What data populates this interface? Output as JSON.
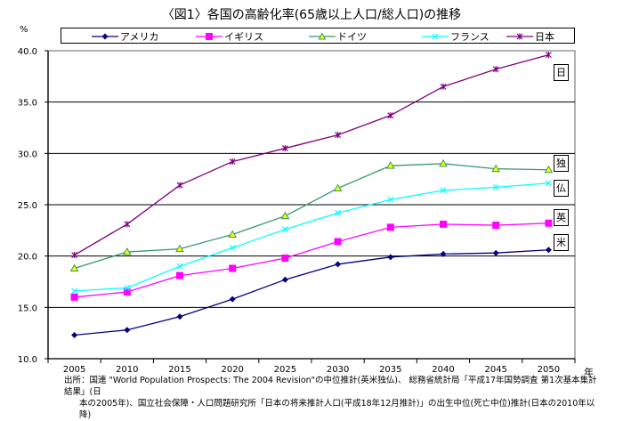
{
  "chart_data": {
    "type": "line",
    "title": "〈図1〉各国の高齢化率(65歳以上人口/総人口)の推移",
    "ylabel": "%",
    "xlabel": "年",
    "ylim": [
      10.0,
      40.0
    ],
    "yticks": [
      "10.0",
      "15.0",
      "20.0",
      "25.0",
      "30.0",
      "35.0",
      "40.0"
    ],
    "ytick_values": [
      10,
      15,
      20,
      25,
      30,
      35,
      40
    ],
    "x": [
      2005,
      2010,
      2015,
      2020,
      2025,
      2030,
      2035,
      2040,
      2045,
      2050
    ],
    "xtick_labels": [
      "2005",
      "2010",
      "2015",
      "2020",
      "2025",
      "2030",
      "2035",
      "2040",
      "2045",
      "2050"
    ],
    "grid": true,
    "legend_position": "top",
    "series": [
      {
        "name": "アメリカ",
        "color": "#000080",
        "marker": "diamond",
        "end_label": "米",
        "values": [
          12.3,
          12.8,
          14.1,
          15.8,
          17.7,
          19.2,
          19.9,
          20.2,
          20.3,
          20.6
        ]
      },
      {
        "name": "イギリス",
        "color": "#FF00FF",
        "marker": "square",
        "end_label": "英",
        "values": [
          16.0,
          16.5,
          18.1,
          18.8,
          19.8,
          21.4,
          22.8,
          23.1,
          23.0,
          23.2
        ]
      },
      {
        "name": "ドイツ",
        "color": "#339966",
        "marker": "triangle",
        "marker_fill": "#FFFF00",
        "end_label": "独",
        "values": [
          18.8,
          20.4,
          20.7,
          22.1,
          23.9,
          26.6,
          28.8,
          29.0,
          28.5,
          28.4
        ]
      },
      {
        "name": "フランス",
        "color": "#00FFFF",
        "marker": "x",
        "end_label": "仏",
        "values": [
          16.6,
          16.9,
          19.0,
          20.8,
          22.6,
          24.2,
          25.5,
          26.4,
          26.7,
          27.1
        ]
      },
      {
        "name": "日本",
        "color": "#800080",
        "marker": "star",
        "end_label": "日",
        "values": [
          20.1,
          23.1,
          26.9,
          29.2,
          30.5,
          31.8,
          33.7,
          36.5,
          38.2,
          39.6
        ]
      }
    ],
    "source_line1": "出所：国連 \"World Population Prospects: The 2004 Revision\"の中位推計(英米独仏)、 総務省統計局「平成17年国勢調査 第1次基本集計結果」(日",
    "source_line2": "本の2005年)、国立社会保障・人口問題研究所「日本の将来推計人口(平成18年12月推計)」の出生中位(死亡中位)推計(日本の2010年以降)"
  }
}
